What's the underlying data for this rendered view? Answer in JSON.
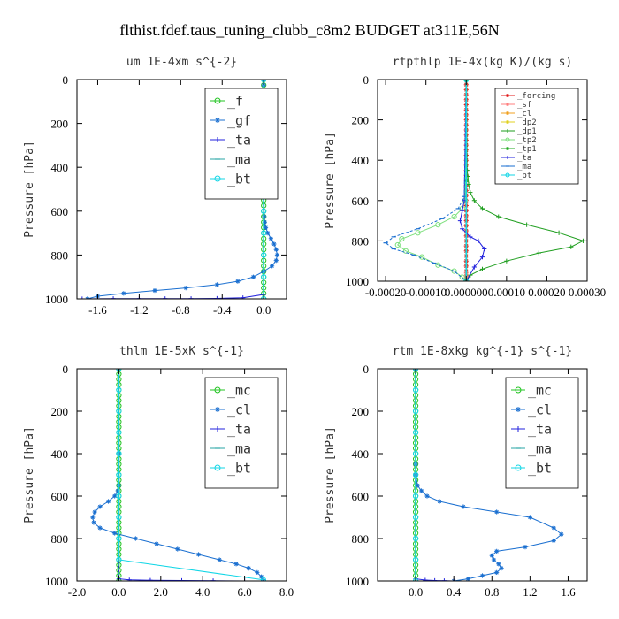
{
  "figure": {
    "title": "flthist.fdef.taus_tuning_clubb_c8m2  BUDGET at311E,56N"
  },
  "chart_data": [
    {
      "type": "line",
      "title": "um  1E-4xm s^{-2}",
      "xlabel": "",
      "ylabel": "Pressure [hPa]",
      "xlim": [
        -1.8,
        0.22
      ],
      "ylim": [
        1000,
        0
      ],
      "xticks": [
        -1.6,
        -1.2,
        -0.8,
        -0.4,
        0.0
      ],
      "xtick_labels": [
        "-1.6",
        "-1.2",
        "-0.8",
        "-0.4",
        "0.0"
      ],
      "yticks": [
        0,
        200,
        400,
        600,
        800,
        1000
      ],
      "ytick_labels": [
        "0",
        "200",
        "400",
        "600",
        "800",
        "1000"
      ],
      "legend": {
        "position": "top-right",
        "size": "large"
      },
      "series": [
        {
          "name": "_f",
          "color": "#22c422",
          "marker": "circle",
          "x": [
            0,
            0,
            0,
            0,
            0,
            0,
            0,
            0,
            0,
            0,
            0,
            0,
            0,
            0,
            0,
            0,
            0,
            0,
            0,
            0,
            0,
            0,
            0,
            0,
            0,
            0,
            0,
            0,
            0,
            0,
            0,
            0,
            0,
            0,
            0,
            0,
            0,
            0,
            0,
            0,
            0
          ],
          "y": [
            0,
            25,
            50,
            75,
            100,
            125,
            150,
            175,
            200,
            225,
            250,
            275,
            300,
            325,
            350,
            375,
            400,
            425,
            450,
            475,
            500,
            525,
            550,
            575,
            600,
            625,
            650,
            675,
            700,
            725,
            750,
            775,
            800,
            825,
            850,
            875,
            900,
            925,
            950,
            975,
            1000
          ]
        },
        {
          "name": "_gf",
          "color": "#1a6fd0",
          "marker": "star",
          "x": [
            0,
            0,
            0,
            0,
            0,
            0,
            0,
            0,
            0,
            0,
            0,
            0,
            0,
            0,
            0,
            0,
            0,
            0,
            0.005,
            0.01,
            0.02,
            0.04,
            0.07,
            0.1,
            0.12,
            0.13,
            0.12,
            0.08,
            0.0,
            -0.1,
            -0.25,
            -0.45,
            -0.75,
            -1.05,
            -1.35,
            -1.6,
            -1.7
          ],
          "y": [
            0,
            25,
            50,
            75,
            100,
            125,
            150,
            175,
            200,
            225,
            250,
            275,
            300,
            325,
            350,
            375,
            400,
            425,
            625,
            650,
            675,
            700,
            725,
            750,
            775,
            800,
            825,
            850,
            875,
            900,
            920,
            935,
            950,
            962,
            975,
            988,
            1000
          ]
        },
        {
          "name": "_ta",
          "color": "#2222dd",
          "marker": "plus",
          "x": [
            0,
            0,
            -0.2,
            -0.45,
            -0.7,
            -0.95,
            -1.2,
            -1.45,
            -1.75
          ],
          "y": [
            0,
            980,
            995,
            998,
            999,
            999,
            999,
            999,
            1000
          ]
        },
        {
          "name": "_ma",
          "color": "#2aa6a6",
          "marker": "dash",
          "x": [
            0,
            0
          ],
          "y": [
            0,
            1000
          ]
        },
        {
          "name": "_bt",
          "color": "#11d6e6",
          "marker": "circle",
          "x": [
            0,
            0,
            0,
            0,
            0,
            0,
            0,
            0,
            0,
            0,
            0
          ],
          "y": [
            0,
            100,
            200,
            300,
            400,
            500,
            600,
            700,
            800,
            900,
            1000
          ]
        }
      ]
    },
    {
      "type": "line",
      "title": "rtpthlp  1E-4x(kg K)/(kg s)",
      "xlabel": "",
      "ylabel": "Pressure [hPa]",
      "xlim": [
        -0.00022,
        0.0003
      ],
      "ylim": [
        1000,
        0
      ],
      "xticks": [
        -0.0002,
        -0.0001,
        0.0,
        0.0001,
        0.0002,
        0.0003
      ],
      "xtick_labels": [
        "-0.00020",
        "-0.00010",
        "0.000000",
        "0.00010",
        "0.00020",
        "0.00030"
      ],
      "yticks": [
        0,
        200,
        400,
        600,
        800,
        1000
      ],
      "ytick_labels": [
        "0",
        "200",
        "400",
        "600",
        "800",
        "1000"
      ],
      "legend": {
        "position": "top-right",
        "size": "small"
      },
      "series": [
        {
          "name": "_forcing",
          "color": "#e01818",
          "marker": "star",
          "x": [
            0,
            0,
            0,
            0,
            0,
            0,
            0,
            0,
            0,
            0,
            0,
            0,
            0,
            0,
            0,
            0,
            0,
            0,
            0,
            0,
            0,
            0,
            0,
            0,
            0,
            0,
            0,
            0,
            0,
            0,
            0,
            0,
            0,
            0,
            0,
            0,
            0,
            0,
            0,
            0,
            0
          ],
          "y": [
            0,
            25,
            50,
            75,
            100,
            125,
            150,
            175,
            200,
            225,
            250,
            275,
            300,
            325,
            350,
            375,
            400,
            425,
            450,
            475,
            500,
            525,
            550,
            575,
            600,
            625,
            650,
            675,
            700,
            725,
            750,
            775,
            800,
            825,
            850,
            875,
            900,
            925,
            950,
            975,
            1000
          ]
        },
        {
          "name": "_sf",
          "color": "#ff7f7f",
          "marker": "star",
          "x": [
            0,
            0,
            0
          ],
          "y": [
            960,
            980,
            1000
          ]
        },
        {
          "name": "_cl",
          "color": "#f0a020",
          "marker": "star",
          "x": [
            0,
            0
          ],
          "y": [
            0,
            1000
          ]
        },
        {
          "name": "_dp2",
          "color": "#e0d020",
          "marker": "star",
          "x": [
            0,
            0
          ],
          "y": [
            0,
            1000
          ]
        },
        {
          "name": "_dp1",
          "color": "#1e9e1e",
          "marker": "plus",
          "x": [
            0,
            2e-06,
            4e-06,
            6e-06,
            1e-05,
            2e-05,
            4e-05,
            8e-05,
            0.00015,
            0.00023,
            0.00029,
            0.00026,
            0.00018,
            0.0001,
            4e-05,
            1e-05,
            0
          ],
          "y": [
            0,
            450,
            480,
            520,
            560,
            600,
            640,
            680,
            720,
            760,
            800,
            830,
            860,
            900,
            940,
            970,
            1000
          ]
        },
        {
          "name": "_tp2",
          "color": "#7ee07e",
          "marker": "circle",
          "x": [
            0,
            -3e-06,
            -1e-05,
            -3e-05,
            -7e-05,
            -0.00012,
            -0.00016,
            -0.00017,
            -0.00015,
            -0.00011,
            -7e-05,
            -3e-05,
            -1e-05,
            0
          ],
          "y": [
            0,
            600,
            640,
            680,
            720,
            760,
            790,
            820,
            850,
            880,
            920,
            950,
            980,
            1000
          ]
        },
        {
          "name": "_tp1",
          "color": "#22aa22",
          "marker": "star",
          "x": [
            0,
            0,
            0
          ],
          "y": [
            0,
            500,
            1000
          ]
        },
        {
          "name": "_ta",
          "color": "#2222dd",
          "marker": "plus",
          "x": [
            0,
            -5e-06,
            -1e-05,
            -1.5e-05,
            -1e-05,
            1e-05,
            3e-05,
            4.5e-05,
            4e-05,
            2e-05,
            0
          ],
          "y": [
            0,
            600,
            650,
            700,
            740,
            780,
            800,
            840,
            880,
            930,
            1000
          ]
        },
        {
          "name": "_ma",
          "color": "#1a6fd0",
          "marker": "dash",
          "x": [
            0,
            -5e-06,
            -2e-05,
            -6e-05,
            -0.00012,
            -0.00018,
            -0.0002,
            -0.00018,
            -0.00013,
            -8e-05,
            -3e-05,
            0
          ],
          "y": [
            0,
            580,
            640,
            690,
            740,
            780,
            810,
            840,
            870,
            910,
            950,
            1000
          ]
        },
        {
          "name": "_bt",
          "color": "#11d6e6",
          "marker": "circle",
          "x": [
            0,
            0
          ],
          "y": [
            0,
            1000
          ]
        }
      ]
    },
    {
      "type": "line",
      "title": "thlm  1E-5xK s^{-1}",
      "xlabel": "",
      "ylabel": "Pressure [hPa]",
      "xlim": [
        -2.0,
        8.0
      ],
      "ylim": [
        1000,
        0
      ],
      "xticks": [
        -2.0,
        0.0,
        2.0,
        4.0,
        6.0,
        8.0
      ],
      "xtick_labels": [
        "-2.0",
        "0.0",
        "2.0",
        "4.0",
        "6.0",
        "8.0"
      ],
      "yticks": [
        0,
        200,
        400,
        600,
        800,
        1000
      ],
      "ytick_labels": [
        "0",
        "200",
        "400",
        "600",
        "800",
        "1000"
      ],
      "legend": {
        "position": "top-right",
        "size": "large"
      },
      "series": [
        {
          "name": "_mc",
          "color": "#22c422",
          "marker": "circle",
          "x": [
            0,
            0,
            0,
            0,
            0,
            0,
            0,
            0,
            0,
            0,
            0,
            0,
            0,
            0,
            0,
            0,
            0,
            0,
            0,
            0,
            0,
            0,
            0,
            0,
            0,
            0,
            0,
            0,
            0,
            0,
            0,
            0,
            0,
            0,
            0,
            0,
            0,
            0,
            0,
            0,
            0
          ],
          "y": [
            0,
            25,
            50,
            75,
            100,
            125,
            150,
            175,
            200,
            225,
            250,
            275,
            300,
            325,
            350,
            375,
            400,
            425,
            450,
            475,
            500,
            525,
            550,
            575,
            600,
            625,
            650,
            675,
            700,
            725,
            750,
            775,
            800,
            825,
            850,
            875,
            900,
            925,
            950,
            975,
            1000
          ]
        },
        {
          "name": "_cl",
          "color": "#1a6fd0",
          "marker": "star",
          "x": [
            0,
            0,
            0,
            -0.05,
            -0.2,
            -0.5,
            -0.9,
            -1.15,
            -1.25,
            -1.2,
            -0.9,
            -0.2,
            0.8,
            1.8,
            2.8,
            3.8,
            4.8,
            5.6,
            6.2,
            6.6,
            6.8,
            6.9
          ],
          "y": [
            0,
            400,
            550,
            575,
            600,
            625,
            650,
            675,
            700,
            725,
            750,
            775,
            800,
            825,
            850,
            875,
            900,
            920,
            940,
            960,
            980,
            1000
          ]
        },
        {
          "name": "_ta",
          "color": "#2222dd",
          "marker": "plus",
          "x": [
            0,
            0,
            0.5,
            1.5,
            3,
            4.5,
            6,
            6.8
          ],
          "y": [
            0,
            990,
            995,
            997,
            998,
            999,
            1000,
            1000
          ]
        },
        {
          "name": "_ma",
          "color": "#2aa6a6",
          "marker": "dash",
          "x": [
            0,
            0
          ],
          "y": [
            0,
            1000
          ]
        },
        {
          "name": "_bt",
          "color": "#11d6e6",
          "marker": "circle",
          "x": [
            0,
            0,
            0,
            0,
            0,
            0,
            0,
            0,
            0,
            0,
            6.9
          ],
          "y": [
            0,
            100,
            200,
            300,
            400,
            500,
            600,
            700,
            800,
            900,
            995
          ]
        }
      ]
    },
    {
      "type": "line",
      "title": "rtm  1E-8xkg kg^{-1} s^{-1}",
      "xlabel": "",
      "ylabel": "Pressure [hPa]",
      "xlim": [
        -0.4,
        1.8
      ],
      "ylim": [
        1000,
        0
      ],
      "xticks": [
        0.0,
        0.4,
        0.8,
        1.2,
        1.6
      ],
      "xtick_labels": [
        "0.0",
        "0.4",
        "0.8",
        "1.2",
        "1.6"
      ],
      "yticks": [
        0,
        200,
        400,
        600,
        800,
        1000
      ],
      "ytick_labels": [
        "0",
        "200",
        "400",
        "600",
        "800",
        "1000"
      ],
      "legend": {
        "position": "top-right",
        "size": "large"
      },
      "series": [
        {
          "name": "_mc",
          "color": "#22c422",
          "marker": "circle",
          "x": [
            0,
            0,
            0,
            0,
            0,
            0,
            0,
            0,
            0,
            0,
            0,
            0,
            0,
            0,
            0,
            0,
            0,
            0,
            0,
            0,
            0,
            0,
            0,
            0,
            0,
            0,
            0,
            0,
            0,
            0,
            0,
            0,
            0,
            0,
            0,
            0,
            0,
            0,
            0,
            0,
            0
          ],
          "y": [
            0,
            25,
            50,
            75,
            100,
            125,
            150,
            175,
            200,
            225,
            250,
            275,
            300,
            325,
            350,
            375,
            400,
            425,
            450,
            475,
            500,
            525,
            550,
            575,
            600,
            625,
            650,
            675,
            700,
            725,
            750,
            775,
            800,
            825,
            850,
            875,
            900,
            925,
            950,
            975,
            1000
          ]
        },
        {
          "name": "_cl",
          "color": "#1a6fd0",
          "marker": "star",
          "x": [
            0,
            0,
            0,
            0.02,
            0.06,
            0.12,
            0.25,
            0.5,
            0.85,
            1.2,
            1.45,
            1.53,
            1.45,
            1.15,
            0.85,
            0.8,
            0.82,
            0.87,
            0.9,
            0.85,
            0.7,
            0.55,
            0.4
          ],
          "y": [
            0,
            450,
            500,
            550,
            575,
            600,
            625,
            650,
            675,
            700,
            750,
            780,
            810,
            840,
            860,
            880,
            900,
            920,
            940,
            960,
            975,
            990,
            1000
          ]
        },
        {
          "name": "_ta",
          "color": "#2222dd",
          "marker": "plus",
          "x": [
            0,
            0,
            0.1,
            0.2,
            0.3,
            0.4
          ],
          "y": [
            0,
            990,
            996,
            998,
            999,
            1000
          ]
        },
        {
          "name": "_ma",
          "color": "#2aa6a6",
          "marker": "dash",
          "x": [
            0,
            0
          ],
          "y": [
            0,
            1000
          ]
        },
        {
          "name": "_bt",
          "color": "#11d6e6",
          "marker": "circle",
          "x": [
            0,
            0,
            0,
            0,
            0,
            0,
            0,
            0,
            0,
            0,
            0
          ],
          "y": [
            0,
            100,
            200,
            300,
            400,
            500,
            600,
            700,
            800,
            900,
            1000
          ]
        }
      ]
    }
  ]
}
